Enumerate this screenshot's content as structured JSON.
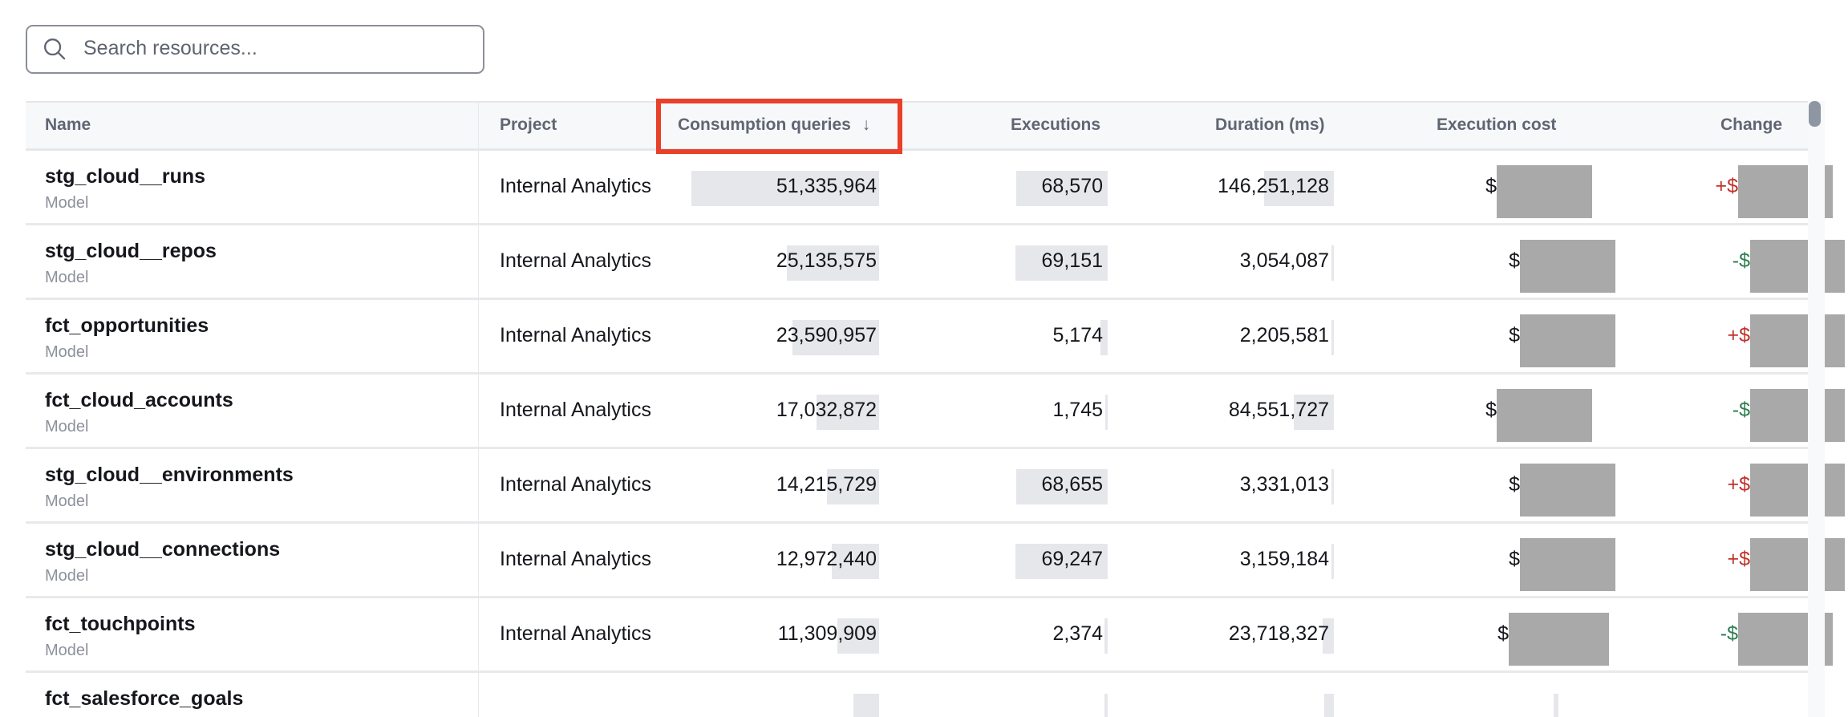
{
  "search": {
    "placeholder": "Search resources...",
    "icon": "search-icon"
  },
  "table": {
    "headers": {
      "name": "Name",
      "project": "Project",
      "consumption_queries": "Consumption queries",
      "sort_indicator": "↓",
      "executions": "Executions",
      "duration": "Duration (ms)",
      "execution_cost": "Execution cost",
      "change": "Change"
    },
    "sorted_by": "Consumption queries",
    "sort_direction": "descending",
    "rows": [
      {
        "name": "stg_cloud__runs",
        "type": "Model",
        "project": "Internal Analytics",
        "consumption_queries": "51,335,964",
        "executions": "68,570",
        "duration": "146,251,128",
        "cost_prefix": "$",
        "change_prefix": "+$",
        "change_sign": "up"
      },
      {
        "name": "stg_cloud__repos",
        "type": "Model",
        "project": "Internal Analytics",
        "consumption_queries": "25,135,575",
        "executions": "69,151",
        "duration": "3,054,087",
        "cost_prefix": "$",
        "change_prefix": "-$",
        "change_sign": "down"
      },
      {
        "name": "fct_opportunities",
        "type": "Model",
        "project": "Internal Analytics",
        "consumption_queries": "23,590,957",
        "executions": "5,174",
        "duration": "2,205,581",
        "cost_prefix": "$",
        "change_prefix": "+$",
        "change_sign": "up"
      },
      {
        "name": "fct_cloud_accounts",
        "type": "Model",
        "project": "Internal Analytics",
        "consumption_queries": "17,032,872",
        "executions": "1,745",
        "duration": "84,551,727",
        "cost_prefix": "$",
        "change_prefix": "-$",
        "change_sign": "down"
      },
      {
        "name": "stg_cloud__environments",
        "type": "Model",
        "project": "Internal Analytics",
        "consumption_queries": "14,215,729",
        "executions": "68,655",
        "duration": "3,331,013",
        "cost_prefix": "$",
        "change_prefix": "+$",
        "change_sign": "up"
      },
      {
        "name": "stg_cloud__connections",
        "type": "Model",
        "project": "Internal Analytics",
        "consumption_queries": "12,972,440",
        "executions": "69,247",
        "duration": "3,159,184",
        "cost_prefix": "$",
        "change_prefix": "+$",
        "change_sign": "up"
      },
      {
        "name": "fct_touchpoints",
        "type": "Model",
        "project": "Internal Analytics",
        "consumption_queries": "11,309,909",
        "executions": "2,374",
        "duration": "23,718,327",
        "cost_prefix": "$",
        "change_prefix": "-$",
        "change_sign": "down"
      },
      {
        "name": "fct_salesforce_goals",
        "type": "",
        "project": "",
        "consumption_queries": "",
        "executions": "",
        "duration": "",
        "cost_prefix": "",
        "change_prefix": "",
        "change_sign": ""
      }
    ]
  },
  "colors": {
    "increase": "#c0322b",
    "decrease": "#2e7d4f",
    "highlight": "#e8402a",
    "bar": "#e6e7eb"
  }
}
